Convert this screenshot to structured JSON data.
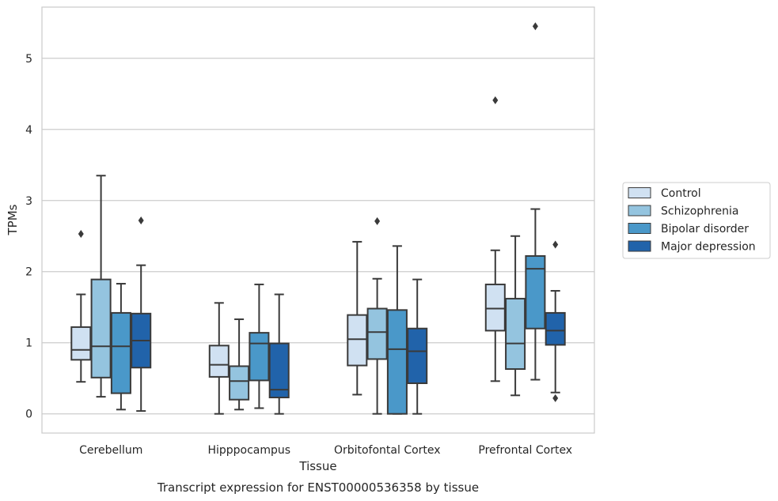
{
  "caption": "Transcript expression for ENST00000536358 by tissue",
  "chart_data": {
    "type": "box",
    "xlabel": "Tissue",
    "ylabel": "TPMs",
    "ylim": [
      -0.27,
      5.72
    ],
    "yticks": [
      0,
      1,
      2,
      3,
      4,
      5
    ],
    "grid": "horizontal",
    "legend_position": "right",
    "categories": [
      "Cerebellum",
      "Hipppocampus",
      "Orbitofontal Cortex",
      "Prefrontal Cortex"
    ],
    "series": [
      {
        "name": "Control",
        "color": "#d0e1f2",
        "boxes": [
          {
            "whisker_low": 0.45,
            "q1": 0.76,
            "median": 0.9,
            "q3": 1.22,
            "whisker_high": 1.68,
            "outliers": [
              2.53
            ]
          },
          {
            "whisker_low": 0.0,
            "q1": 0.52,
            "median": 0.69,
            "q3": 0.96,
            "whisker_high": 1.56,
            "outliers": []
          },
          {
            "whisker_low": 0.27,
            "q1": 0.68,
            "median": 1.05,
            "q3": 1.39,
            "whisker_high": 2.42,
            "outliers": []
          },
          {
            "whisker_low": 0.46,
            "q1": 1.17,
            "median": 1.48,
            "q3": 1.82,
            "whisker_high": 2.3,
            "outliers": [
              4.41
            ]
          }
        ]
      },
      {
        "name": "Schizophrenia",
        "color": "#94c4df",
        "boxes": [
          {
            "whisker_low": 0.24,
            "q1": 0.51,
            "median": 0.95,
            "q3": 1.89,
            "whisker_high": 3.35,
            "outliers": []
          },
          {
            "whisker_low": 0.06,
            "q1": 0.2,
            "median": 0.46,
            "q3": 0.67,
            "whisker_high": 1.33,
            "outliers": []
          },
          {
            "whisker_low": 0.0,
            "q1": 0.77,
            "median": 1.15,
            "q3": 1.48,
            "whisker_high": 1.9,
            "outliers": [
              2.71
            ]
          },
          {
            "whisker_low": 0.26,
            "q1": 0.63,
            "median": 0.99,
            "q3": 1.62,
            "whisker_high": 2.5,
            "outliers": []
          }
        ]
      },
      {
        "name": "Bipolar disorder",
        "color": "#4a98c9",
        "boxes": [
          {
            "whisker_low": 0.06,
            "q1": 0.29,
            "median": 0.95,
            "q3": 1.42,
            "whisker_high": 1.83,
            "outliers": []
          },
          {
            "whisker_low": 0.08,
            "q1": 0.47,
            "median": 0.99,
            "q3": 1.14,
            "whisker_high": 1.82,
            "outliers": []
          },
          {
            "whisker_low": 0.0,
            "q1": 0.0,
            "median": 0.91,
            "q3": 1.46,
            "whisker_high": 2.36,
            "outliers": []
          },
          {
            "whisker_low": 0.48,
            "q1": 1.2,
            "median": 2.04,
            "q3": 2.22,
            "whisker_high": 2.88,
            "outliers": [
              5.45
            ]
          }
        ]
      },
      {
        "name": "Major depression",
        "color": "#2163aa",
        "boxes": [
          {
            "whisker_low": 0.04,
            "q1": 0.65,
            "median": 1.03,
            "q3": 1.41,
            "whisker_high": 2.09,
            "outliers": [
              2.72
            ]
          },
          {
            "whisker_low": 0.0,
            "q1": 0.23,
            "median": 0.34,
            "q3": 0.99,
            "whisker_high": 1.68,
            "outliers": []
          },
          {
            "whisker_low": 0.0,
            "q1": 0.43,
            "median": 0.88,
            "q3": 1.2,
            "whisker_high": 1.89,
            "outliers": []
          },
          {
            "whisker_low": 0.3,
            "q1": 0.97,
            "median": 1.17,
            "q3": 1.42,
            "whisker_high": 1.73,
            "outliers": [
              0.22,
              2.38
            ]
          }
        ]
      }
    ]
  }
}
